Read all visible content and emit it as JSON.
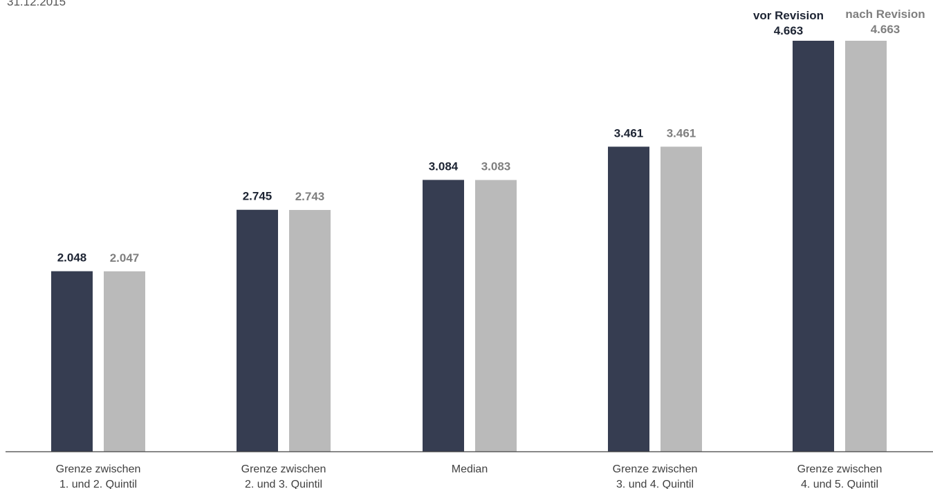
{
  "header": {
    "date": "31.12.2015"
  },
  "chart_data": {
    "type": "bar",
    "title": "",
    "xlabel": "",
    "ylabel": "",
    "categories": [
      [
        "Grenze zwischen",
        "1. und 2. Quintil"
      ],
      [
        "Grenze zwischen",
        "2. und 3. Quintil"
      ],
      [
        "Median"
      ],
      [
        "Grenze zwischen",
        "3. und 4. Quintil"
      ],
      [
        "Grenze zwischen",
        "4. und 5. Quintil"
      ]
    ],
    "series": [
      {
        "name": "vor Revision",
        "color": "#363d51",
        "values": [
          2048,
          2745,
          3084,
          3461,
          4663
        ],
        "labels": [
          "2.048",
          "2.745",
          "3.084",
          "3.461",
          "4.663"
        ]
      },
      {
        "name": "nach Revision",
        "color": "#bababa",
        "values": [
          2047,
          2743,
          3083,
          3461,
          4663
        ],
        "labels": [
          "2.047",
          "2.743",
          "3.083",
          "3.461",
          "4.663"
        ]
      }
    ],
    "ylim": [
      0,
      4663
    ],
    "grid": false,
    "legend": "top-right, above last category"
  }
}
